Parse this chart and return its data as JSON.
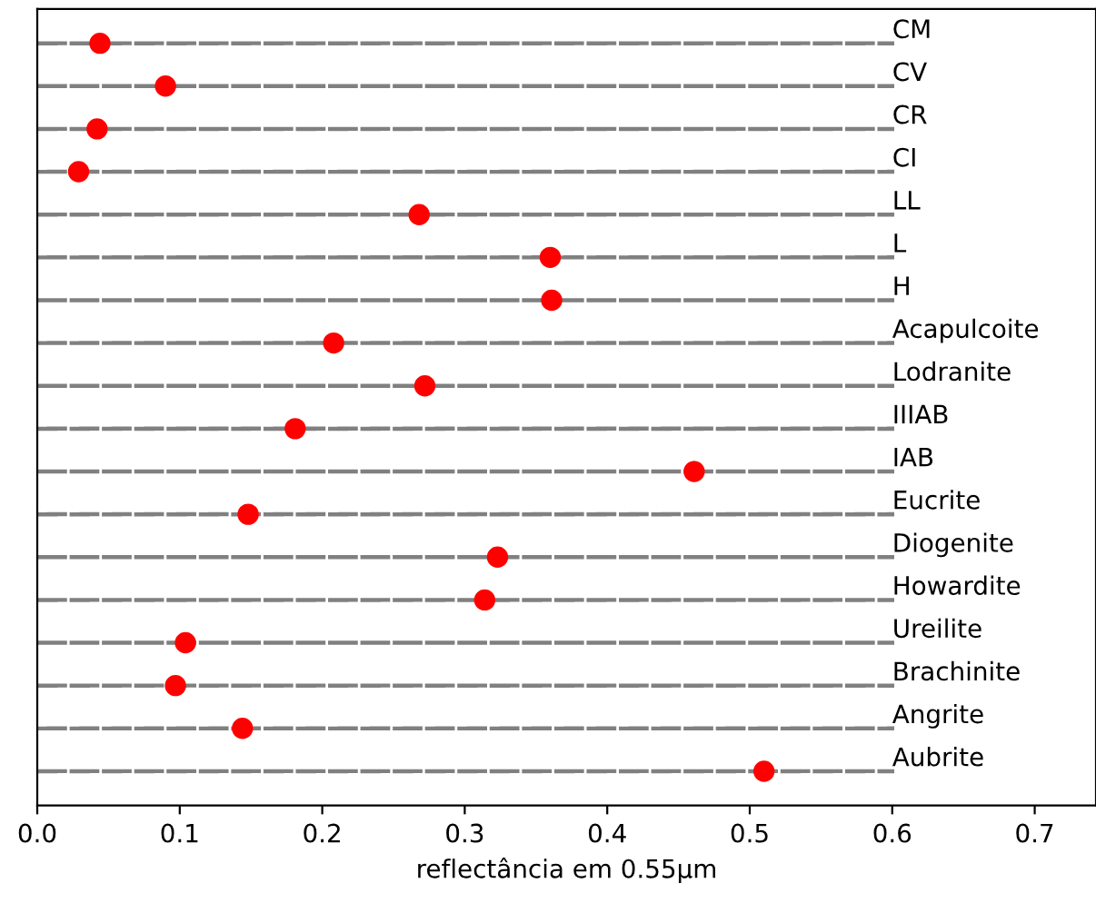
{
  "chart_data": {
    "type": "scatter",
    "orientation": "horizontal",
    "xlabel": "reflectância em 0.55μm",
    "categories": [
      "CM",
      "CV",
      "CR",
      "CI",
      "LL",
      "L",
      "H",
      "Acapulcoite",
      "Lodranite",
      "IIIAB",
      "IAB",
      "Eucrite",
      "Diogenite",
      "Howardite",
      "Ureilite",
      "Brachinite",
      "Angrite",
      "Aubrite"
    ],
    "series": [
      {
        "type": "bar",
        "color": "#808080",
        "line_style": "dashed",
        "values": [
          0.6,
          0.6,
          0.6,
          0.6,
          0.6,
          0.6,
          0.6,
          0.6,
          0.6,
          0.6,
          0.6,
          0.6,
          0.6,
          0.6,
          0.6,
          0.6,
          0.6,
          0.6
        ]
      },
      {
        "color": "#ff0000",
        "marker": "circle",
        "values": [
          0.044,
          0.09,
          0.042,
          0.029,
          0.268,
          0.36,
          0.361,
          0.208,
          0.272,
          0.181,
          0.461,
          0.148,
          0.323,
          0.314,
          0.104,
          0.097,
          0.144,
          0.51
        ]
      }
    ],
    "xlim": [
      0,
      0.743
    ],
    "xticks": [
      {
        "value": 0,
        "label": "0.0"
      },
      {
        "value": 0.1,
        "label": "0.1"
      },
      {
        "value": 0.2,
        "label": "0.2"
      },
      {
        "value": 0.3,
        "label": "0.3"
      },
      {
        "value": 0.4,
        "label": "0.4"
      },
      {
        "value": 0.5,
        "label": "0.5"
      },
      {
        "value": 0.6,
        "label": "0.6"
      },
      {
        "value": 0.7,
        "label": "0.7"
      }
    ],
    "tick_labels": "x",
    "grid": false,
    "legend": false
  }
}
